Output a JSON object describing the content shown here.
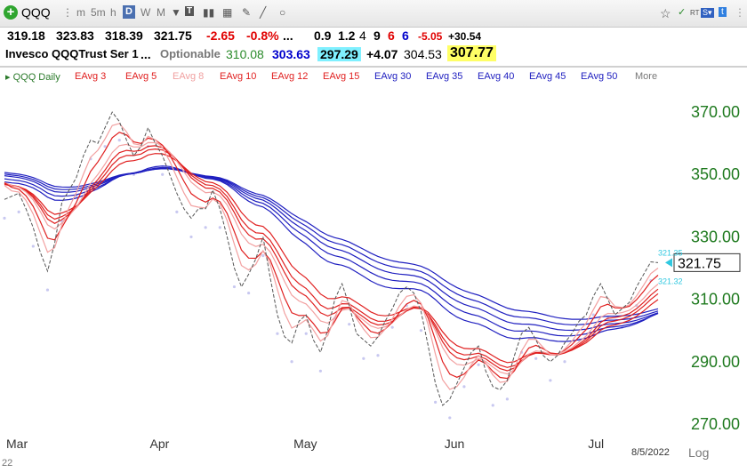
{
  "toolbar": {
    "symbol": "QQQ",
    "periods": [
      "m",
      "5m",
      "h",
      "D",
      "W",
      "M"
    ],
    "active_period": "D"
  },
  "quote": {
    "open": "319.18",
    "high": "323.83",
    "low": "318.39",
    "close": "321.75",
    "change": "-2.65",
    "change_pct": "-0.8%",
    "dots": "...",
    "v1": "0.9",
    "v2": "1.2",
    "v3": "4",
    "v4": "9",
    "v5": "6",
    "v6": "6",
    "v7": "-5.05",
    "v8": "+30.54"
  },
  "name_row": {
    "name": "Invesco QQQTrust Ser 1",
    "dots": "...",
    "optionable": "Optionable",
    "n1": "310.08",
    "n2": "303.63",
    "n3": "297.29",
    "n4": "+4.07",
    "n5": "304.53",
    "n6": "307.77"
  },
  "legend": {
    "items": [
      "QQQ Daily",
      "EAvg 3",
      "EAvg 5",
      "EAvg 8",
      "EAvg 10",
      "EAvg 12",
      "EAvg 15",
      "EAvg 30",
      "EAvg 35",
      "EAvg 40",
      "EAvg 45",
      "EAvg 50",
      "More"
    ],
    "colors": [
      "#2a7a2a",
      "#e02020",
      "#e02020",
      "#f0a0a0",
      "#e02020",
      "#e02020",
      "#e02020",
      "#2020c0",
      "#2020c0",
      "#2020c0",
      "#2020c0",
      "#2020c0",
      "#777777"
    ]
  },
  "colors": {
    "price": "#555555",
    "short_ema": "#e02020",
    "light_ema": "#f2a0a0",
    "long_ema": "#2020c0",
    "axis_text": "#1f7a1f",
    "dots": "#c8c8f0"
  },
  "chart_data": {
    "type": "line",
    "title": "",
    "y_ticks": [
      "370.00",
      "350.00",
      "330.00",
      "310.00",
      "290.00",
      "270.00"
    ],
    "y_tick_values": [
      370,
      350,
      330,
      310,
      290,
      270
    ],
    "ylim": [
      264,
      378
    ],
    "x_labels": [
      "Mar",
      "Apr",
      "May",
      "Jun",
      "Jul"
    ],
    "x_label_index": [
      0,
      20,
      40,
      61,
      81
    ],
    "last_price_label": "321.75",
    "aux_labels": [
      "321.35",
      "321.32"
    ],
    "date_label": "8/5/2022",
    "scale_label": "Log",
    "corner_label": "22",
    "close": [
      342,
      343,
      344,
      339,
      333,
      325,
      319,
      328,
      341,
      345,
      349,
      356,
      361,
      360,
      365,
      370,
      367,
      361,
      356,
      359,
      365,
      360,
      356,
      350,
      344,
      339,
      336,
      339,
      339,
      345,
      339,
      330,
      320,
      314,
      318,
      323,
      330,
      317,
      305,
      298,
      296,
      303,
      305,
      297,
      293,
      300,
      310,
      315,
      308,
      299,
      297,
      295,
      298,
      303,
      307,
      312,
      314,
      312,
      306,
      295,
      283,
      276,
      278,
      283,
      288,
      293,
      295,
      287,
      282,
      281,
      284,
      292,
      299,
      301,
      297,
      292,
      290,
      292,
      296,
      299,
      303,
      305,
      311,
      315,
      310,
      305,
      307,
      309,
      314,
      318,
      322,
      321.75
    ],
    "series_names": [
      "QQQ Daily",
      "EAvg 3",
      "EAvg 5",
      "EAvg 8",
      "EAvg 10",
      "EAvg 12",
      "EAvg 15",
      "EAvg 30",
      "EAvg 35",
      "EAvg 40",
      "EAvg 45",
      "EAvg 50"
    ],
    "ema_periods": [
      3,
      5,
      8,
      10,
      12,
      15,
      30,
      35,
      40,
      45,
      50
    ],
    "seed_values": [
      351,
      350,
      349,
      348.5,
      348,
      347.5,
      348,
      349,
      350,
      350.5,
      351
    ]
  }
}
